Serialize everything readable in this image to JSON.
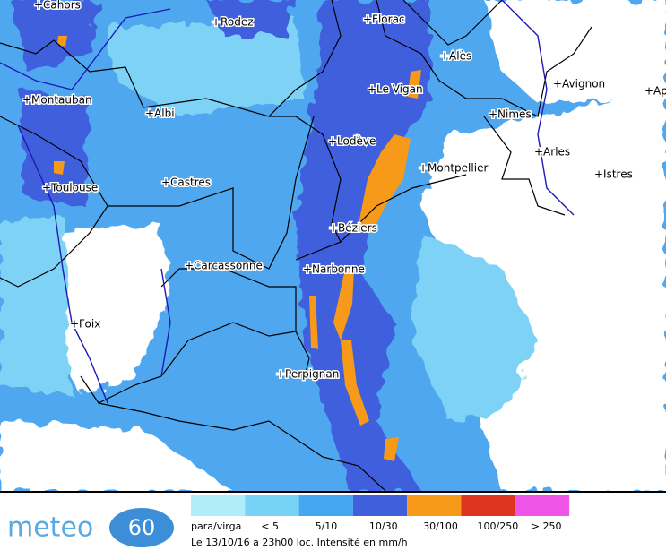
{
  "cities": [
    "+Cahors",
    "+Rodez",
    "+Florac",
    "+Alès",
    "+Le Vigan",
    "+Avignon",
    "+Ap",
    "+Montauban",
    "+Albi",
    "+Nimes",
    "+Lodève",
    "+Arles",
    "+Montpellier",
    "+Istres",
    "+Toulouse",
    "+Castres",
    "+Béziers",
    "+Carcassonne",
    "+Narbonne",
    "+Foix",
    "+Perpignan"
  ],
  "legend": [
    {
      "label": "para/virga",
      "color": "#b0ecfa"
    },
    {
      "label": "< 5",
      "color": "#78d2f5"
    },
    {
      "label": "5/10",
      "color": "#44a8f0"
    },
    {
      "label": "10/30",
      "color": "#3f5fdd"
    },
    {
      "label": "30/100",
      "color": "#f79a19"
    },
    {
      "label": "100/250",
      "color": "#dd3520"
    },
    {
      "label": "> 250",
      "color": "#ee55e6"
    }
  ],
  "caption": "Le 13/10/16 a 23h00 loc. Intensité en mm/h",
  "logo": {
    "name": "meteo",
    "badge": "60"
  }
}
